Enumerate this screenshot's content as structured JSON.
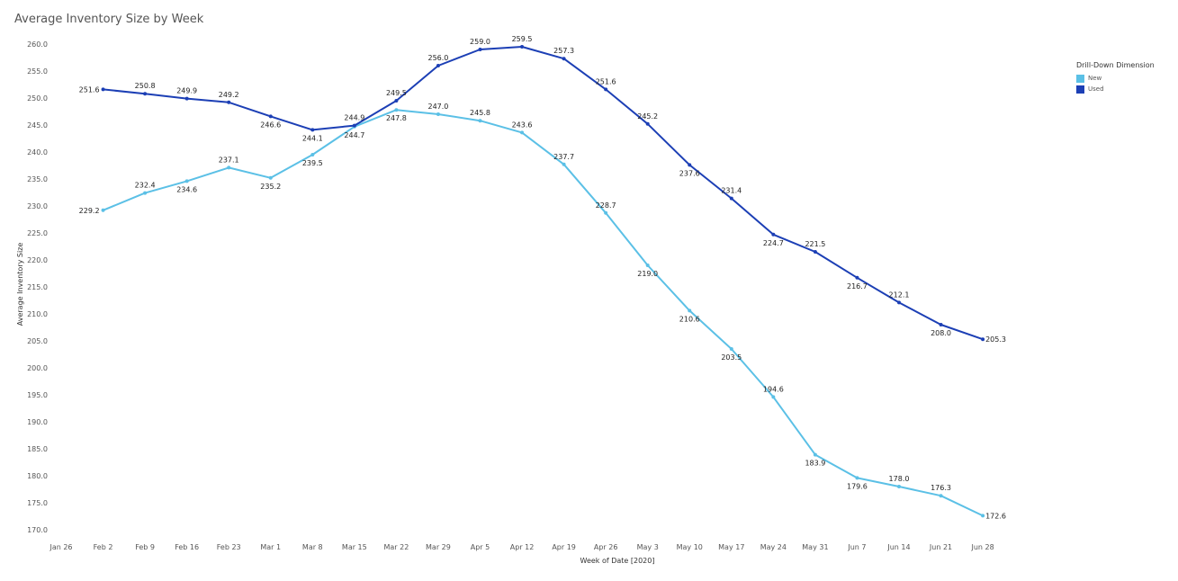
{
  "chart_data": {
    "type": "line",
    "title": "Average Inventory Size by Week",
    "xlabel": "Week of Date [2020]",
    "ylabel": "Average Inventory Size",
    "categories": [
      "Jan 26",
      "Feb 2",
      "Feb 9",
      "Feb 16",
      "Feb 23",
      "Mar 1",
      "Mar 8",
      "Mar 15",
      "Mar 22",
      "Mar 29",
      "Apr 5",
      "Apr 12",
      "Apr 19",
      "Apr 26",
      "May 3",
      "May 10",
      "May 17",
      "May 24",
      "May 31",
      "Jun 7",
      "Jun 14",
      "Jun 21",
      "Jun 28"
    ],
    "y_ticks": [
      "170.0",
      "175.0",
      "180.0",
      "185.0",
      "190.0",
      "195.0",
      "200.0",
      "205.0",
      "210.0",
      "215.0",
      "220.0",
      "225.0",
      "230.0",
      "235.0",
      "240.0",
      "245.0",
      "250.0",
      "255.0",
      "260.0"
    ],
    "ylim": [
      168.5,
      262.5
    ],
    "legend": {
      "title": "Drill-Down Dimension",
      "position": "top-right"
    },
    "series": [
      {
        "name": "New",
        "color": "#5bc0e6",
        "x": [
          "Feb 2",
          "Feb 9",
          "Feb 16",
          "Feb 23",
          "Mar 1",
          "Mar 8",
          "Mar 15",
          "Mar 22",
          "Mar 29",
          "Apr 5",
          "Apr 12",
          "Apr 19",
          "Apr 26",
          "May 3",
          "May 10",
          "May 17",
          "May 24",
          "May 31",
          "Jun 7",
          "Jun 14",
          "Jun 21",
          "Jun 28"
        ],
        "values": [
          229.2,
          232.4,
          234.6,
          237.1,
          235.2,
          239.5,
          244.7,
          247.8,
          247.0,
          245.8,
          243.6,
          237.7,
          228.7,
          219.0,
          210.6,
          203.5,
          194.6,
          183.9,
          179.6,
          178.0,
          176.3,
          172.6
        ],
        "labels": [
          "229.2",
          "232.4",
          "234.6",
          "237.1",
          "235.2",
          "239.5",
          "244.7",
          "247.8",
          "247.0",
          "245.8",
          "243.6",
          "237.7",
          "228.7",
          "219.0",
          "210.6",
          "203.5",
          "194.6",
          "183.9",
          "179.6",
          "178.0",
          "176.3",
          "172.6"
        ]
      },
      {
        "name": "Used",
        "color": "#1c3fb5",
        "x": [
          "Feb 2",
          "Feb 9",
          "Feb 16",
          "Feb 23",
          "Mar 1",
          "Mar 8",
          "Mar 15",
          "Mar 22",
          "Mar 29",
          "Apr 5",
          "Apr 12",
          "Apr 19",
          "Apr 26",
          "May 3",
          "May 10",
          "May 17",
          "May 24",
          "May 31",
          "Jun 7",
          "Jun 14",
          "Jun 21",
          "Jun 28"
        ],
        "values": [
          251.6,
          250.8,
          249.9,
          249.2,
          246.6,
          244.1,
          244.9,
          249.5,
          256.0,
          259.0,
          259.5,
          257.3,
          251.6,
          245.2,
          237.6,
          231.4,
          224.7,
          221.5,
          216.7,
          212.1,
          208.0,
          205.3
        ],
        "labels": [
          "251.6",
          "250.8",
          "249.9",
          "249.2",
          "246.6",
          "244.1",
          "244.9",
          "249.5",
          "256.0",
          "259.0",
          "259.5",
          "257.3",
          "251.6",
          "245.2",
          "237.6",
          "231.4",
          "224.7",
          "221.5",
          "216.7",
          "212.1",
          "208.0",
          "205.3"
        ]
      }
    ]
  }
}
